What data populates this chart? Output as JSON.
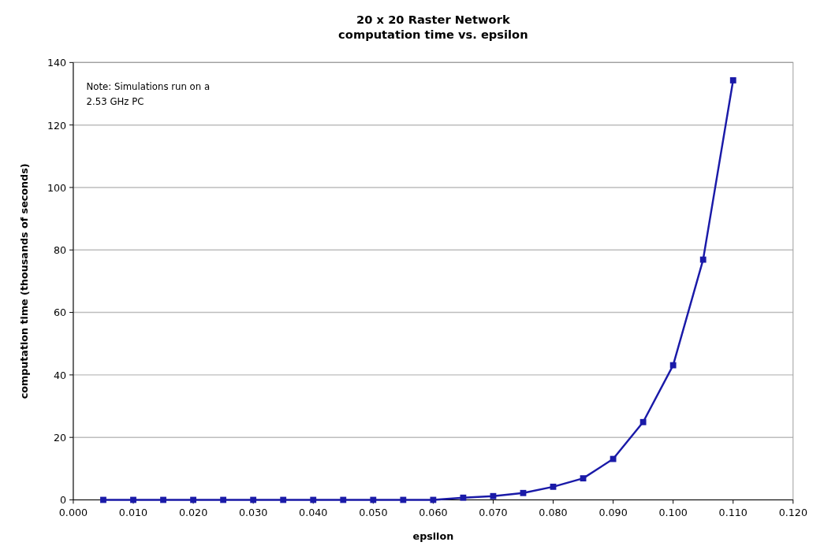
{
  "chart_data": {
    "type": "line",
    "title": "20 x 20 Raster Network\ncomputation time vs. epsilon",
    "xlabel": "epsilon",
    "ylabel": "computation time (thousands of seconds)",
    "annotations": [
      "Note: Simulations run on a\n2.53 GHz PC"
    ],
    "x": [
      0.005,
      0.01,
      0.015,
      0.02,
      0.025,
      0.03,
      0.035,
      0.04,
      0.045,
      0.05,
      0.055,
      0.06,
      0.065,
      0.07,
      0.075,
      0.08,
      0.085,
      0.09,
      0.095,
      0.1,
      0.105,
      0.11
    ],
    "series": [
      {
        "color": "#1a1aa8",
        "values": [
          0,
          0,
          0,
          0,
          0,
          0,
          0,
          0,
          0,
          0,
          0,
          0,
          0.7,
          1.2,
          2.2,
          4.2,
          6.9,
          13.1,
          24.9,
          43.1,
          76.9,
          134.3
        ]
      }
    ],
    "xlim": [
      0,
      0.12
    ],
    "xticks": [
      {
        "value": 0,
        "label": "0.000"
      },
      {
        "value": 0.01,
        "label": "0.010"
      },
      {
        "value": 0.02,
        "label": "0.020"
      },
      {
        "value": 0.03,
        "label": "0.030"
      },
      {
        "value": 0.04,
        "label": "0.040"
      },
      {
        "value": 0.05,
        "label": "0.050"
      },
      {
        "value": 0.06,
        "label": "0.060"
      },
      {
        "value": 0.07,
        "label": "0.070"
      },
      {
        "value": 0.08,
        "label": "0.080"
      },
      {
        "value": 0.09,
        "label": "0.090"
      },
      {
        "value": 0.1,
        "label": "0.100"
      },
      {
        "value": 0.11,
        "label": "0.110"
      },
      {
        "value": 0.12,
        "label": "0.120"
      }
    ],
    "ylim": [
      0,
      140
    ],
    "yticks": [
      0,
      20,
      40,
      60,
      80,
      100,
      120,
      140
    ],
    "grid": "y",
    "marker": "square",
    "line_style": "solid"
  }
}
